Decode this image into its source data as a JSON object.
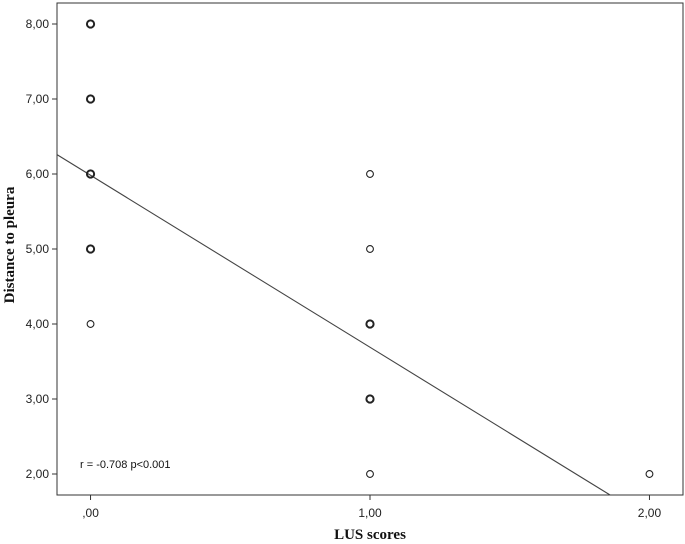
{
  "chart_data": {
    "type": "scatter",
    "title": "",
    "xlabel": "LUS scores",
    "ylabel": "Distance to pleura",
    "xlim": [
      -0.12,
      2.12
    ],
    "ylim": [
      1.72,
      8.28
    ],
    "x_ticks": [
      0,
      1,
      2
    ],
    "x_tick_labels": [
      ",00",
      "1,00",
      "2,00"
    ],
    "y_ticks": [
      2,
      3,
      4,
      5,
      6,
      7,
      8
    ],
    "y_tick_labels": [
      "2,00",
      "3,00",
      "4,00",
      "5,00",
      "6,00",
      "7,00",
      "8,00"
    ],
    "grid": false,
    "marker": "open-circle",
    "marker_color": "#222222",
    "points": [
      {
        "x": 0,
        "y": 8,
        "bold": true
      },
      {
        "x": 0,
        "y": 7,
        "bold": true
      },
      {
        "x": 0,
        "y": 6,
        "bold": true
      },
      {
        "x": 0,
        "y": 5,
        "bold": true
      },
      {
        "x": 0,
        "y": 4,
        "bold": false
      },
      {
        "x": 1,
        "y": 6,
        "bold": false
      },
      {
        "x": 1,
        "y": 5,
        "bold": false
      },
      {
        "x": 1,
        "y": 4,
        "bold": true
      },
      {
        "x": 1,
        "y": 3,
        "bold": true
      },
      {
        "x": 1,
        "y": 2,
        "bold": false
      },
      {
        "x": 2,
        "y": 2,
        "bold": false
      }
    ],
    "fit_line": {
      "intercept": 5.983,
      "slope": -2.293,
      "color": "#444444"
    },
    "annotation": "r = -0.708 p<0.001"
  }
}
